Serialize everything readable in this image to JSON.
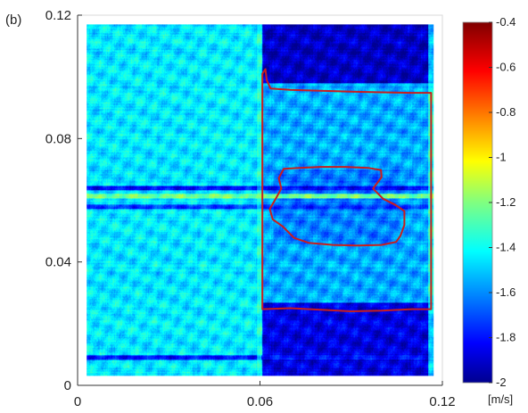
{
  "panel_label": "(b)",
  "chart_data": {
    "type": "heatmap",
    "title": "",
    "xlabel": "",
    "ylabel": "",
    "xlim": [
      0,
      0.12
    ],
    "ylim": [
      0,
      0.12
    ],
    "x_ticks": [
      {
        "value": 0,
        "label": "0"
      },
      {
        "value": 0.06,
        "label": "0.06"
      },
      {
        "value": 0.12,
        "label": "0.12"
      }
    ],
    "y_ticks": [
      {
        "value": 0,
        "label": "0"
      },
      {
        "value": 0.04,
        "label": "0.04"
      },
      {
        "value": 0.08,
        "label": "0.08"
      },
      {
        "value": 0.12,
        "label": "0.12"
      }
    ],
    "colormap": "jet",
    "colorbar": {
      "range": [
        -2,
        -0.4
      ],
      "unit_label": "[m/s]",
      "ticks": [
        {
          "value": -0.4,
          "label": "-0.4"
        },
        {
          "value": -0.6,
          "label": "-0.6"
        },
        {
          "value": -0.8,
          "label": "-0.8"
        },
        {
          "value": -1,
          "label": "-1"
        },
        {
          "value": -1.2,
          "label": "-1.2"
        },
        {
          "value": -1.4,
          "label": "-1.4"
        },
        {
          "value": -1.6,
          "label": "-1.6"
        },
        {
          "value": -1.8,
          "label": "-1.8"
        },
        {
          "value": -2,
          "label": "-2"
        }
      ]
    },
    "field": {
      "data_extent": {
        "x": [
          0.003,
          0.117
        ],
        "y": [
          0.003,
          0.117
        ]
      },
      "regions": [
        {
          "name": "left half",
          "x": [
            0.003,
            0.0605
          ],
          "y": [
            0.003,
            0.117
          ],
          "mean_value": -1.45
        },
        {
          "name": "right upper band",
          "x": [
            0.0605,
            0.117
          ],
          "y": [
            0.098,
            0.117
          ],
          "mean_value": -1.92
        },
        {
          "name": "right lower band",
          "x": [
            0.0605,
            0.117
          ],
          "y": [
            0.003,
            0.027
          ],
          "mean_value": -1.87
        },
        {
          "name": "right interior",
          "x": [
            0.0605,
            0.117
          ],
          "y": [
            0.027,
            0.098
          ],
          "mean_value": -1.55
        },
        {
          "name": "inner region",
          "x": [
            0.064,
            0.106
          ],
          "y": [
            0.046,
            0.07
          ],
          "mean_value": -1.62
        }
      ],
      "stripes": [
        {
          "orientation": "horizontal",
          "y": 0.0615,
          "value": -1.22
        },
        {
          "orientation": "horizontal",
          "y": 0.064,
          "value": -1.8
        },
        {
          "orientation": "horizontal",
          "y": 0.058,
          "value": -1.75
        },
        {
          "orientation": "horizontal",
          "y": 0.009,
          "value": -1.8
        },
        {
          "orientation": "vertical",
          "x": 0.0595,
          "value": -1.3
        },
        {
          "orientation": "vertical",
          "x": 0.116,
          "value": -1.15
        }
      ]
    },
    "contours": [
      {
        "color": "#c81e1e",
        "closed": true,
        "points": [
          [
            0.0608,
            0.101
          ],
          [
            0.0618,
            0.1025
          ],
          [
            0.0622,
            0.099
          ],
          [
            0.0635,
            0.0962
          ],
          [
            0.07,
            0.0958
          ],
          [
            0.08,
            0.0955
          ],
          [
            0.09,
            0.0952
          ],
          [
            0.1,
            0.095
          ],
          [
            0.11,
            0.0948
          ],
          [
            0.1163,
            0.0948
          ],
          [
            0.1163,
            0.08
          ],
          [
            0.1163,
            0.06
          ],
          [
            0.1163,
            0.04
          ],
          [
            0.1163,
            0.0247
          ],
          [
            0.11,
            0.0247
          ],
          [
            0.1,
            0.0242
          ],
          [
            0.09,
            0.024
          ],
          [
            0.08,
            0.0245
          ],
          [
            0.07,
            0.025
          ],
          [
            0.0608,
            0.0247
          ],
          [
            0.0608,
            0.04
          ],
          [
            0.0608,
            0.06
          ],
          [
            0.0608,
            0.08
          ]
        ]
      },
      {
        "color": "#c81e1e",
        "closed": true,
        "points": [
          [
            0.0678,
            0.0702
          ],
          [
            0.073,
            0.0705
          ],
          [
            0.08,
            0.0708
          ],
          [
            0.088,
            0.0708
          ],
          [
            0.0955,
            0.0705
          ],
          [
            0.0998,
            0.0698
          ],
          [
            0.1,
            0.0675
          ],
          [
            0.0985,
            0.0655
          ],
          [
            0.0972,
            0.0638
          ],
          [
            0.1005,
            0.0605
          ],
          [
            0.1045,
            0.0585
          ],
          [
            0.1075,
            0.0565
          ],
          [
            0.1075,
            0.052
          ],
          [
            0.1062,
            0.0485
          ],
          [
            0.1048,
            0.0465
          ],
          [
            0.1,
            0.0455
          ],
          [
            0.092,
            0.0453
          ],
          [
            0.084,
            0.0455
          ],
          [
            0.076,
            0.0462
          ],
          [
            0.0712,
            0.0478
          ],
          [
            0.0675,
            0.0515
          ],
          [
            0.0642,
            0.0538
          ],
          [
            0.0632,
            0.0572
          ],
          [
            0.0652,
            0.0605
          ],
          [
            0.067,
            0.0638
          ],
          [
            0.0662,
            0.0672
          ]
        ]
      }
    ]
  }
}
